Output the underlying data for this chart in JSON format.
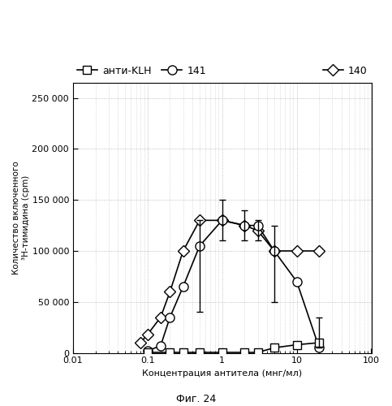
{
  "xlabel": "Концентрация антитела (мнг/мл)",
  "ylabel": "Количество включенного\n³H-тимидина (cpm)",
  "xlim": [
    0.01,
    100
  ],
  "ylim": [
    0,
    265000
  ],
  "yticks": [
    0,
    50000,
    100000,
    150000,
    200000,
    250000
  ],
  "caption": "Фиг. 24",
  "series_140": {
    "label": "140",
    "x": [
      0.08,
      0.1,
      0.15,
      0.2,
      0.3,
      0.5,
      1.0,
      2.0,
      3.0,
      5.0,
      10.0,
      20.0
    ],
    "y": [
      10000,
      18000,
      35000,
      60000,
      100000,
      130000,
      130000,
      125000,
      120000,
      100000,
      100000,
      100000
    ],
    "yerr_lo": [
      0,
      0,
      0,
      0,
      0,
      0,
      0,
      15000,
      10000,
      0,
      0,
      0
    ],
    "yerr_hi": [
      0,
      0,
      0,
      0,
      0,
      0,
      0,
      15000,
      10000,
      0,
      0,
      0
    ]
  },
  "series_141": {
    "label": "141",
    "x": [
      0.1,
      0.15,
      0.2,
      0.3,
      0.5,
      1.0,
      2.0,
      3.0,
      5.0,
      10.0,
      20.0
    ],
    "y": [
      2000,
      7000,
      35000,
      65000,
      105000,
      130000,
      125000,
      125000,
      100000,
      70000,
      5000
    ],
    "yerr_lo": [
      0,
      0,
      0,
      0,
      65000,
      20000,
      0,
      0,
      50000,
      0,
      0
    ],
    "yerr_hi": [
      0,
      0,
      0,
      0,
      25000,
      20000,
      0,
      0,
      25000,
      0,
      30000
    ]
  },
  "series_klh": {
    "label": "анти-KLH",
    "x": [
      0.1,
      0.2,
      0.3,
      0.5,
      1.0,
      2.0,
      3.0,
      5.0,
      10.0,
      20.0
    ],
    "y": [
      500,
      500,
      500,
      500,
      500,
      500,
      500,
      5000,
      8000,
      10000
    ]
  },
  "background_color": "#ffffff",
  "grid_color": "#999999"
}
